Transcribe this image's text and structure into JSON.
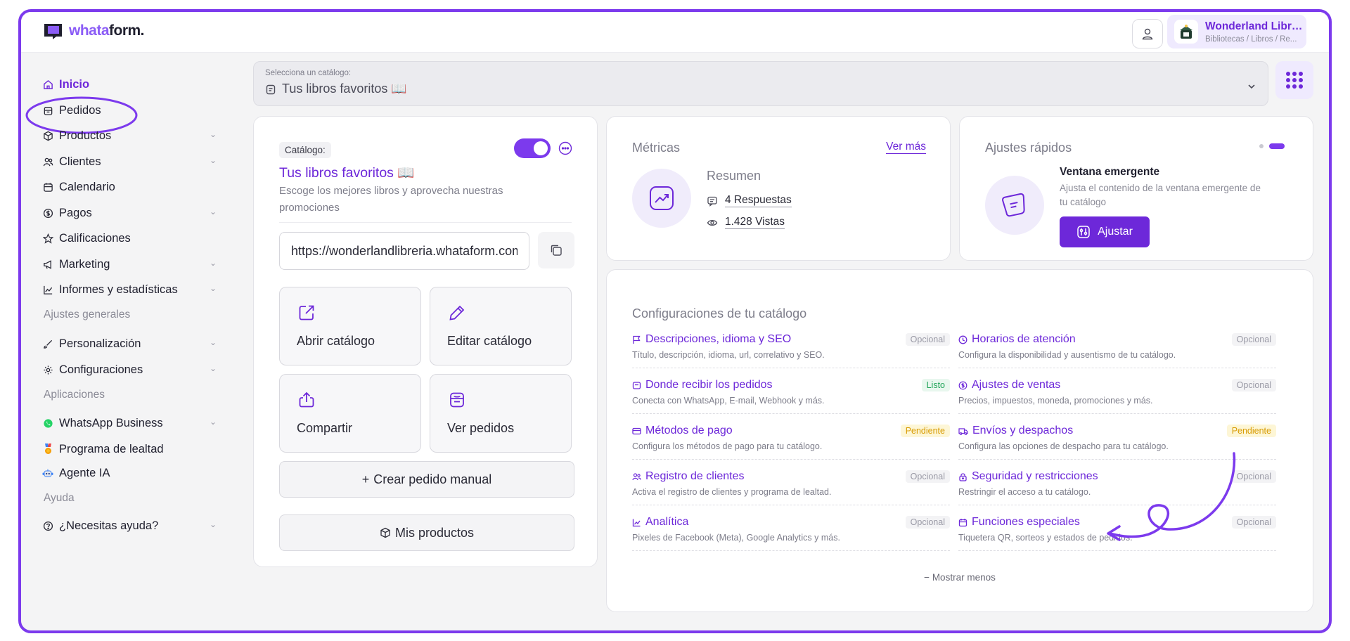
{
  "brand": {
    "name_part1": "whata",
    "name_part2": "form.",
    "accent": "#7c3aed"
  },
  "header": {
    "user_icon": "user-icon",
    "store": {
      "name": "Wonderland Libre...",
      "breadcrumb": "Bibliotecas / Libros / Re..."
    }
  },
  "sidebar": {
    "items": [
      {
        "label": "Inicio",
        "icon": "home-icon",
        "active": true
      },
      {
        "label": "Pedidos",
        "icon": "bag-icon"
      },
      {
        "label": "Productos",
        "icon": "box-icon",
        "expandable": true
      },
      {
        "label": "Clientes",
        "icon": "users-icon",
        "expandable": true
      },
      {
        "label": "Calendario",
        "icon": "calendar-icon"
      },
      {
        "label": "Pagos",
        "icon": "dollar-icon",
        "expandable": true
      },
      {
        "label": "Calificaciones",
        "icon": "star-icon"
      },
      {
        "label": "Marketing",
        "icon": "megaphone-icon",
        "expandable": true
      },
      {
        "label": "Informes y estadísticas",
        "icon": "chart-icon",
        "expandable": true
      }
    ],
    "section_general": "Ajustes generales",
    "general_items": [
      {
        "label": "Personalización",
        "icon": "brush-icon",
        "expandable": true
      },
      {
        "label": "Configuraciones",
        "icon": "gear-icon",
        "expandable": true
      }
    ],
    "section_apps": "Aplicaciones",
    "app_items": [
      {
        "label": "WhatsApp Business",
        "icon": "whatsapp-icon",
        "expandable": true
      },
      {
        "label": "Programa de lealtad",
        "icon": "medal-icon"
      },
      {
        "label": "Agente IA",
        "icon": "robot-icon"
      }
    ],
    "section_help": "Ayuda",
    "help_items": [
      {
        "label": "¿Necesitas ayuda?",
        "icon": "help-icon",
        "expandable": true
      }
    ]
  },
  "catalog_select": {
    "label": "Selecciona un catálogo:",
    "value": "Tus libros favoritos 📖"
  },
  "catalog_card": {
    "tag": "Catálogo:",
    "title": "Tus libros favoritos 📖",
    "description": "Escoge los mejores libros y aprovecha nuestras promociones",
    "url": "https://wonderlandlibreria.whataform.com",
    "enabled": true,
    "tiles": [
      {
        "label": "Abrir catálogo",
        "icon": "external-link-icon"
      },
      {
        "label": "Editar catálogo",
        "icon": "pencil-icon"
      },
      {
        "label": "Compartir",
        "icon": "share-icon"
      },
      {
        "label": "Ver pedidos",
        "icon": "orders-icon"
      }
    ],
    "create_order": "Crear pedido manual",
    "create_order_prefix": "+",
    "my_products": "Mis productos"
  },
  "metrics": {
    "title": "Métricas",
    "see_more": "Ver más",
    "summary": "Resumen",
    "responses": "4 Respuestas",
    "views": "1.428 Vistas"
  },
  "quick_settings": {
    "title": "Ajustes rápidos",
    "item_title": "Ventana emergente",
    "item_desc": "Ajusta el contenido de la ventana emergente de tu catálogo",
    "button": "Ajustar"
  },
  "config": {
    "title": "Configuraciones de tu catálogo",
    "items": [
      {
        "title": "Descripciones, idioma y SEO",
        "desc": "Título, descripción, idioma, url, correlativo y SEO.",
        "badge": "Opcional",
        "status": "opcional",
        "icon": "flag-icon"
      },
      {
        "title": "Horarios de atención",
        "desc": "Configura la disponibilidad y ausentismo de tu catálogo.",
        "badge": "Opcional",
        "status": "opcional",
        "icon": "clock-icon"
      },
      {
        "title": "Donde recibir los pedidos",
        "desc": "Conecta con WhatsApp, E-mail, Webhook y más.",
        "badge": "Listo",
        "status": "listo",
        "icon": "inbox-icon"
      },
      {
        "title": "Ajustes de ventas",
        "desc": "Precios, impuestos, moneda, promociones y más.",
        "badge": "Opcional",
        "status": "opcional",
        "icon": "dollar-icon"
      },
      {
        "title": "Métodos de pago",
        "desc": "Configura los métodos de pago para tu catálogo.",
        "badge": "Pendiente",
        "status": "pendiente",
        "icon": "card-icon"
      },
      {
        "title": "Envíos y despachos",
        "desc": "Configura las opciones de despacho para tu catálogo.",
        "badge": "Pendiente",
        "status": "pendiente",
        "icon": "truck-icon"
      },
      {
        "title": "Registro de clientes",
        "desc": "Activa el registro de clientes y programa de lealtad.",
        "badge": "Opcional",
        "status": "opcional",
        "icon": "users-icon"
      },
      {
        "title": "Seguridad y restricciones",
        "desc": "Restringir el acceso a tu catálogo.",
        "badge": "Opcional",
        "status": "opcional",
        "icon": "lock-icon"
      },
      {
        "title": "Analítica",
        "desc": "Pixeles de Facebook (Meta), Google Analytics y más.",
        "badge": "Opcional",
        "status": "opcional",
        "icon": "chart-icon"
      },
      {
        "title": "Funciones especiales",
        "desc": "Tiquetera QR, sorteos y estados de pedidos.",
        "badge": "Opcional",
        "status": "opcional",
        "icon": "calendar-icon"
      }
    ],
    "show_less": "Mostrar menos",
    "show_less_prefix": "−"
  }
}
